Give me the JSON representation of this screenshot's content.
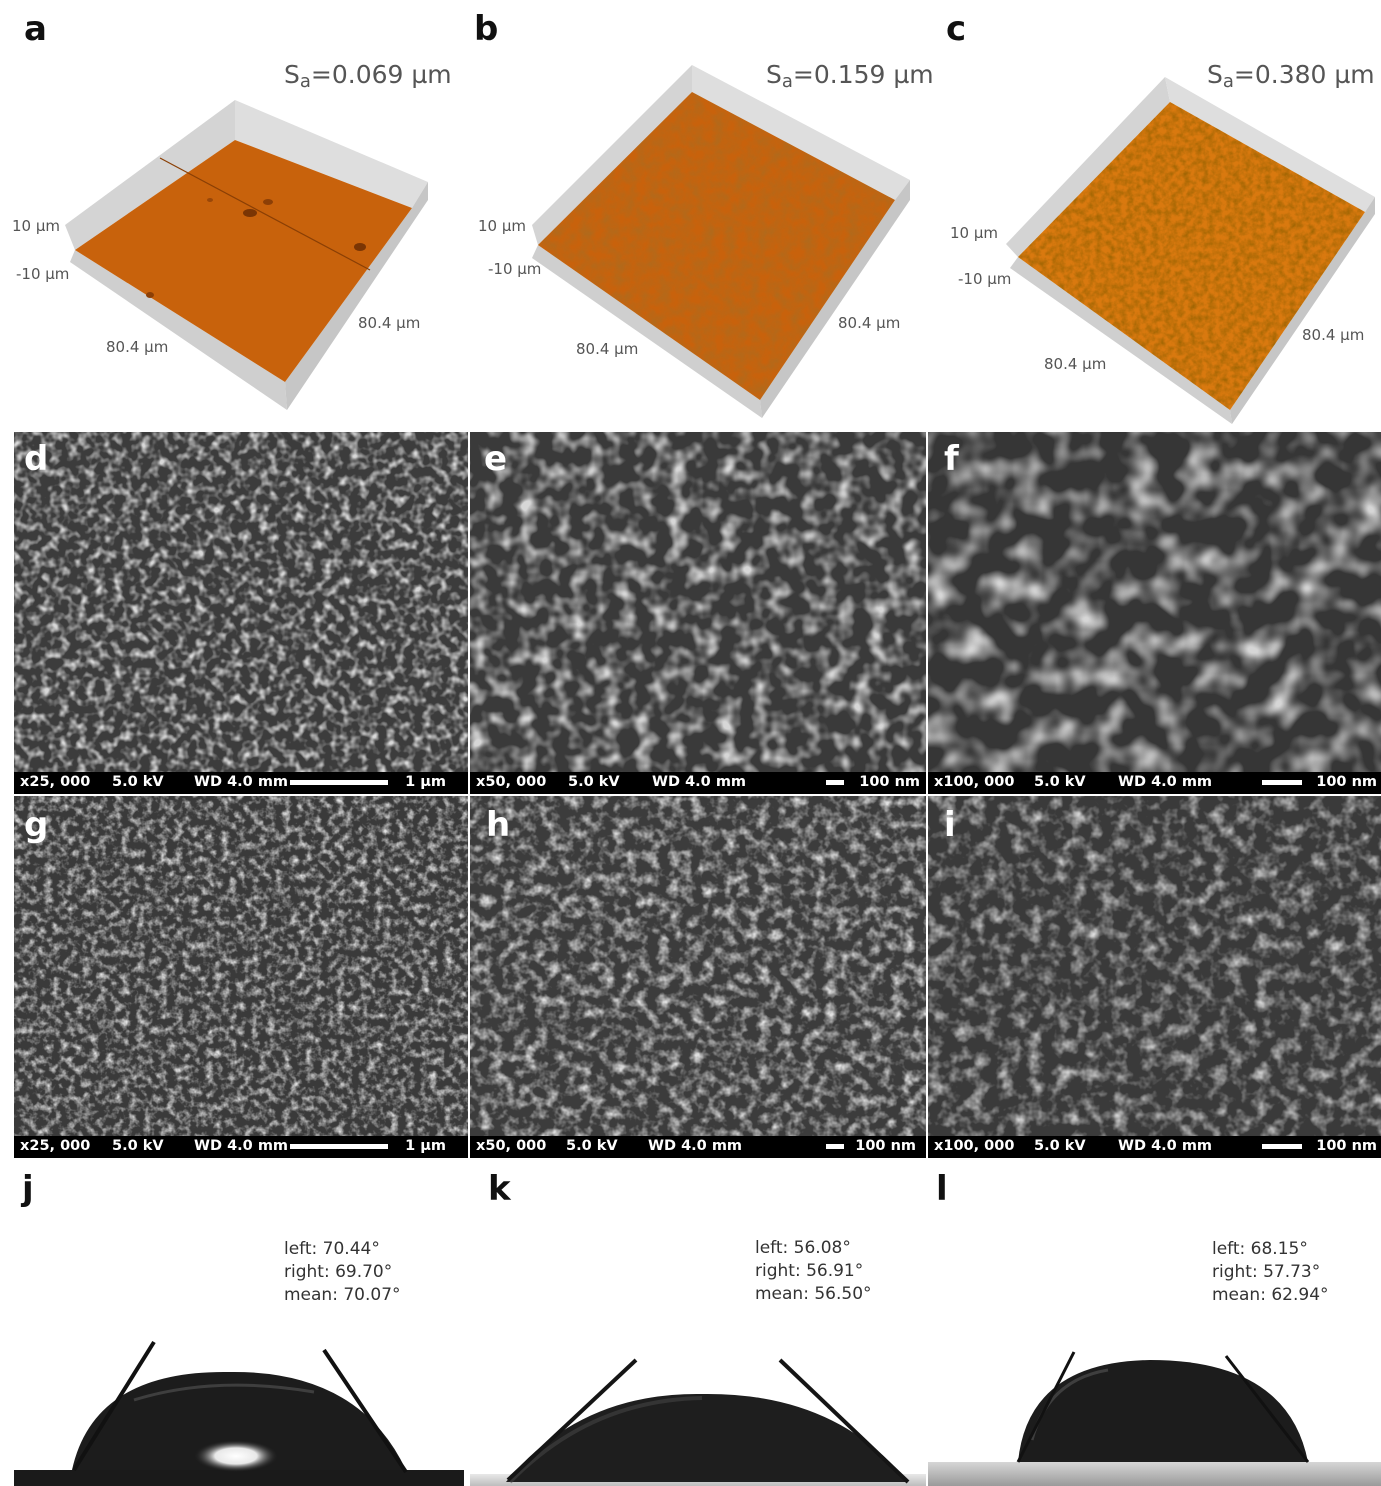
{
  "panel_labels": [
    "a",
    "b",
    "c",
    "d",
    "e",
    "f",
    "g",
    "h",
    "i",
    "j",
    "k",
    "l"
  ],
  "profilometry": [
    {
      "sa_prefix": "S",
      "sa_sub": "a",
      "sa_value": "=0.069 µm",
      "z_top": "10 µm",
      "z_bottom": "-10 µm",
      "x_axis": "80.4 µm",
      "y_axis": "80.4 µm"
    },
    {
      "sa_prefix": "S",
      "sa_sub": "a",
      "sa_value": "=0.159 µm",
      "z_top": "10 µm",
      "z_bottom": "-10 µm",
      "x_axis": "80.4 µm",
      "y_axis": "80.4 µm"
    },
    {
      "sa_prefix": "S",
      "sa_sub": "a",
      "sa_value": "=0.380 µm",
      "z_top": "10 µm",
      "z_bottom": "-10 µm",
      "x_axis": "80.4 µm",
      "y_axis": "80.4 µm"
    }
  ],
  "sem": [
    {
      "mag": "x25, 000",
      "kv": "5.0 kV",
      "wd": "WD 4.0 mm",
      "scale": "1 µm"
    },
    {
      "mag": "x50, 000",
      "kv": "5.0 kV",
      "wd": "WD 4.0 mm",
      "scale": "100 nm"
    },
    {
      "mag": "x100, 000",
      "kv": "5.0 kV",
      "wd": "WD 4.0 mm",
      "scale": "100 nm"
    },
    {
      "mag": "x25, 000",
      "kv": "5.0 kV",
      "wd": "WD 4.0 mm",
      "scale": "1 µm"
    },
    {
      "mag": "x50, 000",
      "kv": "5.0 kV",
      "wd": "WD 4.0 mm",
      "scale": "100 nm"
    },
    {
      "mag": "x100, 000",
      "kv": "5.0 kV",
      "wd": "WD 4.0 mm",
      "scale": "100 nm"
    }
  ],
  "contact_angles": [
    {
      "left": "left: 70.44°",
      "right": "right: 69.70°",
      "mean": "mean: 70.07°"
    },
    {
      "left": "left: 56.08°",
      "right": "right: 56.91°",
      "mean": "mean: 56.50°"
    },
    {
      "left": "left: 68.15°",
      "right": "right: 57.73°",
      "mean": "mean: 62.94°"
    }
  ],
  "colors": {
    "surface": "#c8600c",
    "surface_rough": "#d8780e",
    "sem_bar": "#000000"
  }
}
